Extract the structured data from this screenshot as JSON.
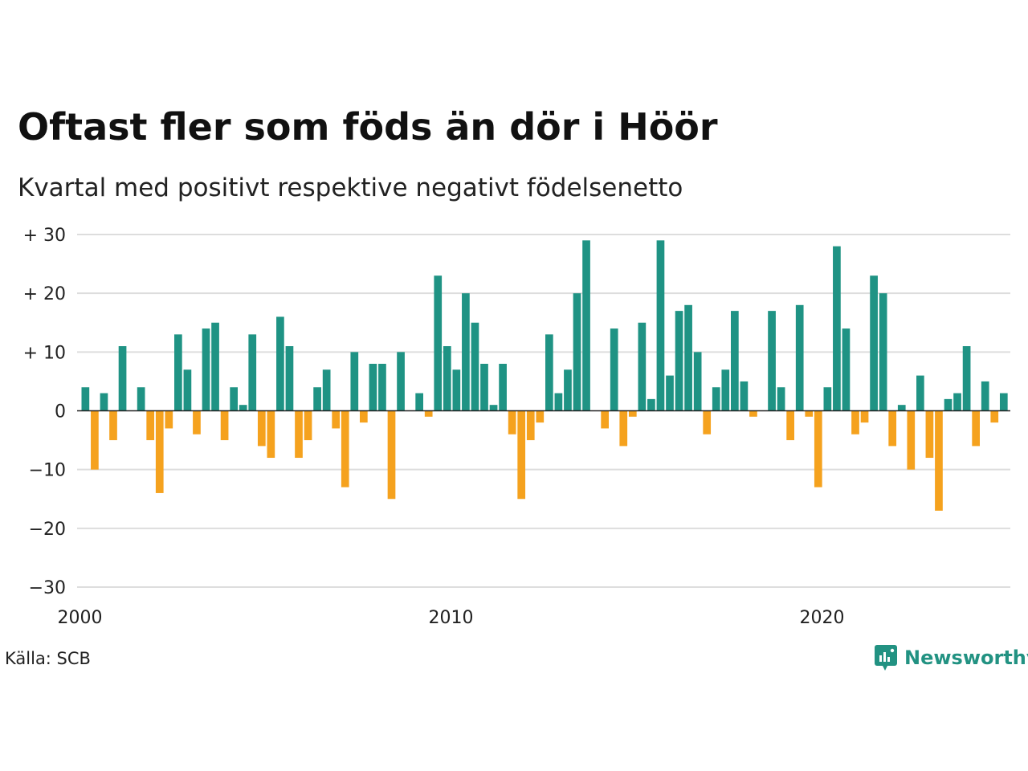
{
  "title": "Oftast fler som föds än dör i Höör",
  "subtitle": "Kvartal med positivt respektive negativt födelsenetto",
  "source": "Källa: SCB",
  "brand": {
    "name": "Newsworthy",
    "icon": "newsworthy-logo-icon",
    "color": "#229282"
  },
  "colors": {
    "positive": "#1f9384",
    "negative": "#f5a21e",
    "grid": "#dddddd",
    "zero_line": "#222222"
  },
  "chart_data": {
    "type": "bar",
    "title": "Oftast fler som föds än dör i Höör",
    "subtitle": "Kvartal med positivt respektive negativt födelsenetto",
    "xlabel": "",
    "ylabel": "",
    "ylim": [
      -30,
      30
    ],
    "yticks": [
      30,
      20,
      10,
      0,
      -10,
      -20,
      -30
    ],
    "ytick_labels": [
      "+ 30",
      "+ 20",
      "+ 10",
      "0",
      "−10",
      "−20",
      "−30"
    ],
    "xticks": [
      2000,
      2010,
      2020
    ],
    "xtick_labels": [
      "2000",
      "2010",
      "2020"
    ],
    "grid": true,
    "start": "2000 Q1",
    "frequency": "quarter",
    "values": [
      4,
      -10,
      3,
      -5,
      11,
      0,
      4,
      -5,
      -14,
      -3,
      13,
      7,
      -4,
      14,
      15,
      -5,
      4,
      1,
      13,
      -6,
      -8,
      16,
      11,
      -8,
      -5,
      4,
      7,
      -3,
      -13,
      10,
      -2,
      8,
      8,
      -15,
      10,
      0,
      3,
      -1,
      23,
      11,
      7,
      20,
      15,
      8,
      1,
      8,
      -4,
      -15,
      -5,
      -2,
      13,
      3,
      7,
      20,
      29,
      0,
      -3,
      14,
      -6,
      -1,
      15,
      2,
      29,
      6,
      17,
      18,
      10,
      -4,
      4,
      7,
      17,
      5,
      -1,
      0,
      17,
      4,
      -5,
      18,
      -1,
      -13,
      4,
      28,
      14,
      -4,
      -2,
      23,
      20,
      -6,
      1,
      -10,
      6,
      -8,
      -17,
      2,
      3,
      11,
      -6,
      5,
      -2,
      3
    ]
  }
}
